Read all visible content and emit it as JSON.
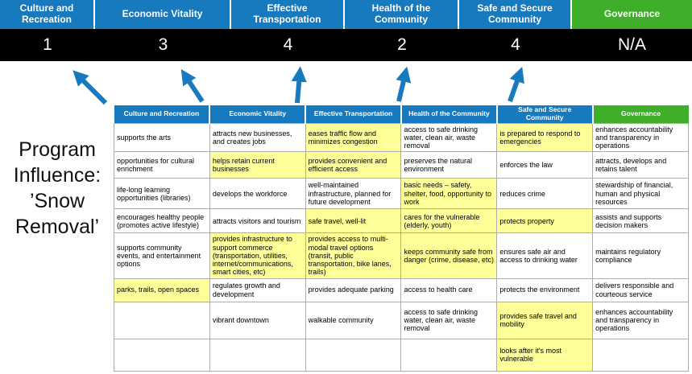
{
  "colors": {
    "category_blue": "#1779BE",
    "category_green": "#3FAE2A",
    "score_band_bg": "#000000",
    "highlight_yellow": "#FFFF99",
    "arrow_blue": "#1779BE"
  },
  "program_label": "Program Influence: ’Snow Removal’",
  "summary": {
    "columns": [
      {
        "label": "Culture and Recreation",
        "score": "1",
        "theme": "blue"
      },
      {
        "label": "Economic Vitality",
        "score": "3",
        "theme": "blue"
      },
      {
        "label": "Effective Transportation",
        "score": "4",
        "theme": "blue"
      },
      {
        "label": "Health of the Community",
        "score": "2",
        "theme": "blue"
      },
      {
        "label": "Safe and Secure Community",
        "score": "4",
        "theme": "blue"
      },
      {
        "label": "Governance",
        "score": "N/A",
        "theme": "green"
      }
    ]
  },
  "matrix": {
    "headers": [
      {
        "label": "Culture and Recreation",
        "theme": "blue"
      },
      {
        "label": "Economic Vitality",
        "theme": "blue"
      },
      {
        "label": "Effective Transportation",
        "theme": "blue"
      },
      {
        "label": "Health of the Community",
        "theme": "blue"
      },
      {
        "label": "Safe and Secure Community",
        "theme": "blue"
      },
      {
        "label": "Governance",
        "theme": "green"
      }
    ],
    "rows": [
      [
        {
          "text": "supports the arts",
          "hl": false
        },
        {
          "text": "attracts new businesses, and creates jobs",
          "hl": false
        },
        {
          "text": "eases traffic flow and minimizes congestion",
          "hl": true
        },
        {
          "text": "access to safe drinking water, clean air, waste removal",
          "hl": false
        },
        {
          "text": "is prepared to respond to emergencies",
          "hl": true
        },
        {
          "text": "enhances accountability and transparency in operations",
          "hl": false
        }
      ],
      [
        {
          "text": "opportunities for cultural enrichment",
          "hl": false
        },
        {
          "text": "helps retain current businesses",
          "hl": true
        },
        {
          "text": "provides convenient and efficient access",
          "hl": true
        },
        {
          "text": "preserves the natural environment",
          "hl": false
        },
        {
          "text": "enforces the law",
          "hl": false
        },
        {
          "text": "attracts, develops and retains talent",
          "hl": false
        }
      ],
      [
        {
          "text": "life-long learning opportunities (libraries)",
          "hl": false
        },
        {
          "text": "develops the workforce",
          "hl": false
        },
        {
          "text": "well-maintained infrastructure, planned for future development",
          "hl": false
        },
        {
          "text": "basic needs – safety, shelter, food, opportunity to work",
          "hl": true
        },
        {
          "text": "reduces crime",
          "hl": false
        },
        {
          "text": "stewardship of financial, human and physical resources",
          "hl": false
        }
      ],
      [
        {
          "text": "encourages healthy people (promotes active lifestyle)",
          "hl": false
        },
        {
          "text": "attracts visitors and tourism",
          "hl": false
        },
        {
          "text": "safe travel, well-lit",
          "hl": true
        },
        {
          "text": "cares for the vulnerable (elderly, youth)",
          "hl": true
        },
        {
          "text": "protects property",
          "hl": true
        },
        {
          "text": "assists and supports decision makers",
          "hl": false
        }
      ],
      [
        {
          "text": "supports community events, and entertainment options",
          "hl": false
        },
        {
          "text": "provides infrastructure to support commerce (transportation, utilities, internet/communications, smart cities, etc)",
          "hl": true
        },
        {
          "text": "provides access to multi-modal travel options (transit, public transportation, bike lanes, trails)",
          "hl": true
        },
        {
          "text": "keeps community safe from danger (crime, disease, etc)",
          "hl": true
        },
        {
          "text": "ensures safe air and access to drinking water",
          "hl": false
        },
        {
          "text": "maintains regulatory compliance",
          "hl": false
        }
      ],
      [
        {
          "text": "parks, trails, open spaces",
          "hl": true
        },
        {
          "text": "regulates growth and development",
          "hl": false
        },
        {
          "text": "provides adequate parking",
          "hl": false
        },
        {
          "text": "access to health care",
          "hl": false
        },
        {
          "text": "protects the environment",
          "hl": false
        },
        {
          "text": "delivers responsible and courteous service",
          "hl": false
        }
      ],
      [
        {
          "text": "",
          "hl": false
        },
        {
          "text": "vibrant downtown",
          "hl": false
        },
        {
          "text": "walkable community",
          "hl": false
        },
        {
          "text": "access to safe drinking water, clean air, waste removal",
          "hl": false
        },
        {
          "text": "provides safe travel and mobility",
          "hl": true
        },
        {
          "text": "enhances accountability and transparency in operations",
          "hl": false
        }
      ],
      [
        {
          "text": "",
          "hl": false
        },
        {
          "text": "",
          "hl": false
        },
        {
          "text": "",
          "hl": false
        },
        {
          "text": "",
          "hl": false
        },
        {
          "text": "looks after it's most vulnerable",
          "hl": true
        },
        {
          "text": "",
          "hl": false
        }
      ]
    ]
  }
}
